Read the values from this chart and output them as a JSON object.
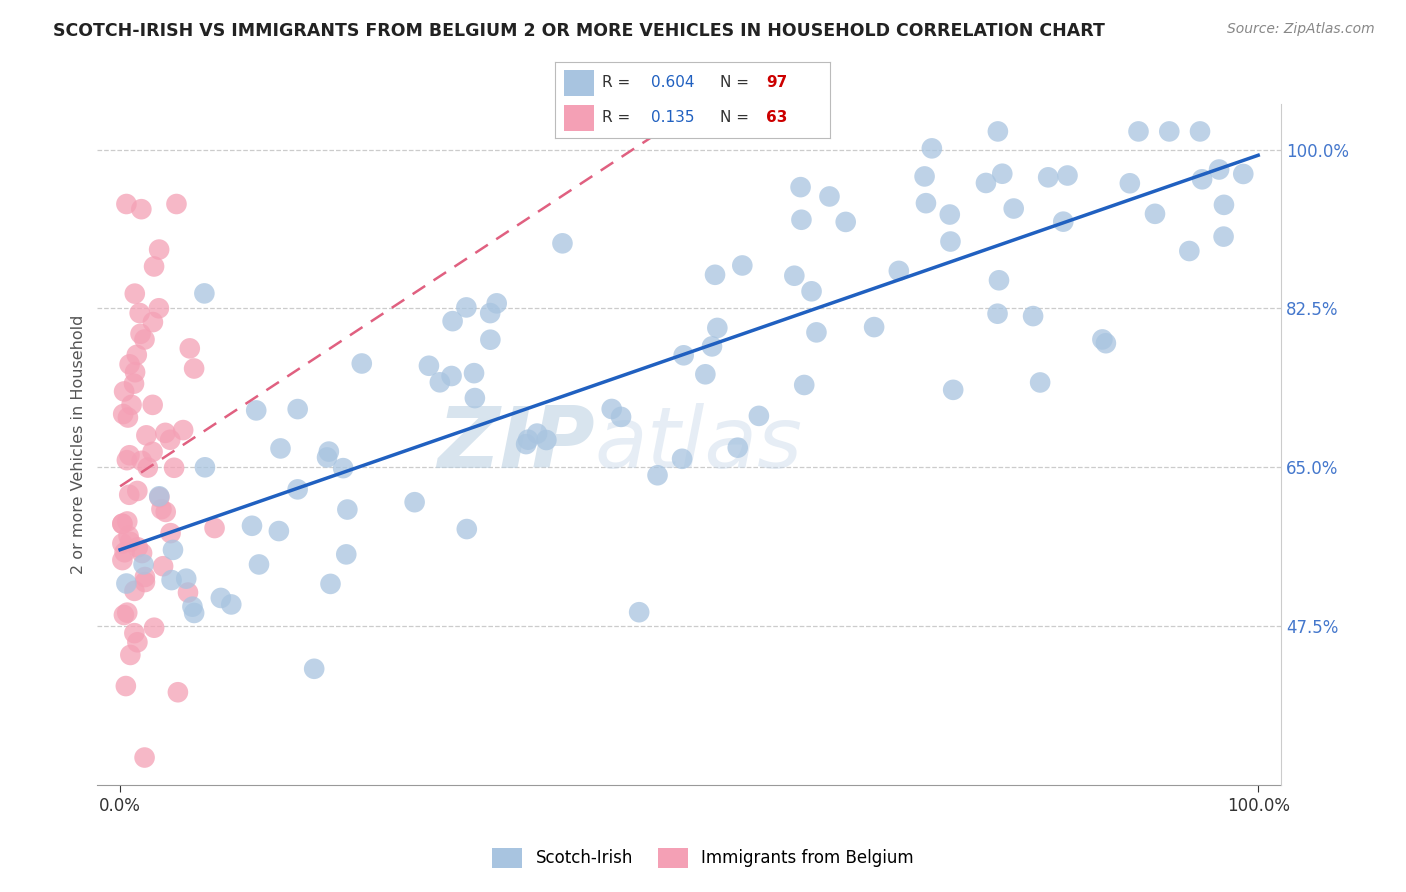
{
  "title": "SCOTCH-IRISH VS IMMIGRANTS FROM BELGIUM 2 OR MORE VEHICLES IN HOUSEHOLD CORRELATION CHART",
  "source": "Source: ZipAtlas.com",
  "ylabel": "2 or more Vehicles in Household",
  "r_blue": 0.604,
  "n_blue": 97,
  "r_pink": 0.135,
  "n_pink": 63,
  "blue_color": "#a8c4e0",
  "pink_color": "#f4a0b5",
  "blue_line_color": "#2060c0",
  "pink_line_color": "#e06080",
  "legend_blue_label": "Scotch-Irish",
  "legend_pink_label": "Immigrants from Belgium",
  "watermark_zip": "ZIP",
  "watermark_atlas": "atlas",
  "ytick_labels": [
    "47.5%",
    "65.0%",
    "82.5%",
    "100.0%"
  ],
  "ytick_positions": [
    0.475,
    0.65,
    0.825,
    1.0
  ],
  "ymin": 0.3,
  "ymax": 1.05,
  "xmin": -0.02,
  "xmax": 1.02,
  "title_color": "#222222",
  "source_color": "#888888",
  "axis_label_color": "#555555",
  "right_tick_color": "#4477cc"
}
